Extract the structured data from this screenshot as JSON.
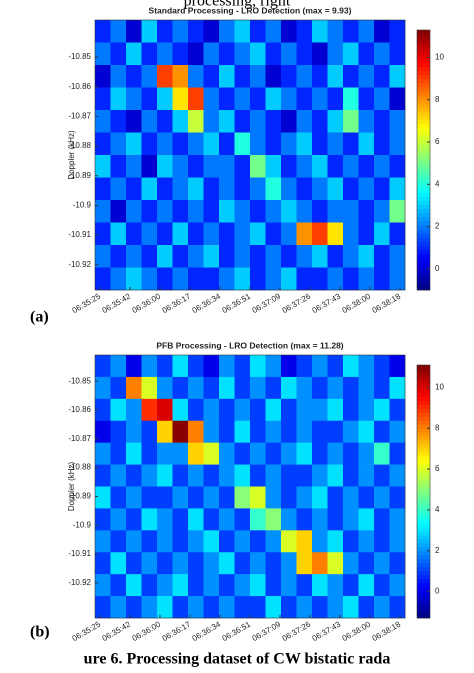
{
  "header_text": "processing, right",
  "caption": "ure 6. Processing dataset of CW bistatic rada",
  "chart_data": [
    {
      "type": "heatmap",
      "title": "Standard Processing - LRO Detection (max = 9.93)",
      "ylabel": "Doppler (kHz)",
      "panel_label": "(a)",
      "ylim": [
        -10.9285,
        -10.8375
      ],
      "yticks": [
        -10.85,
        -10.86,
        -10.87,
        -10.88,
        -10.89,
        -10.9,
        -10.91,
        -10.92
      ],
      "xtick_labels": [
        "06:35:25",
        "06:35:42",
        "06:36:00",
        "06:36:17",
        "06:36:34",
        "06:36:51",
        "06:37:09",
        "06:37:26",
        "06:37:43",
        "06:38:00",
        "06:38:18"
      ],
      "colormap": "jet",
      "clim": [
        -1.0,
        11.3
      ],
      "colorbar_ticks": [
        0,
        2,
        4,
        6,
        8,
        10
      ],
      "z": [
        [
          1,
          2,
          0,
          3,
          1,
          2,
          1,
          0,
          2,
          3,
          1,
          2,
          0,
          1,
          3,
          2,
          1,
          2,
          0,
          1
        ],
        [
          2,
          1,
          3,
          1,
          2,
          1,
          0,
          2,
          1,
          2,
          3,
          1,
          2,
          1,
          0,
          2,
          3,
          1,
          2,
          1
        ],
        [
          0,
          2,
          1,
          2,
          9,
          8,
          2,
          1,
          3,
          1,
          2,
          0,
          1,
          2,
          1,
          3,
          1,
          2,
          1,
          3
        ],
        [
          1,
          3,
          2,
          1,
          3,
          7,
          9,
          2,
          1,
          2,
          1,
          3,
          2,
          1,
          2,
          1,
          4,
          1,
          2,
          0
        ],
        [
          2,
          1,
          0,
          2,
          1,
          3,
          6,
          2,
          3,
          1,
          2,
          1,
          0,
          2,
          1,
          3,
          5,
          2,
          1,
          2
        ],
        [
          1,
          2,
          3,
          1,
          2,
          1,
          2,
          3,
          1,
          4,
          2,
          1,
          2,
          3,
          1,
          2,
          1,
          3,
          1,
          2
        ],
        [
          3,
          1,
          2,
          0,
          3,
          2,
          1,
          2,
          2,
          1,
          5,
          3,
          1,
          2,
          3,
          1,
          2,
          1,
          2,
          1
        ],
        [
          1,
          2,
          1,
          3,
          1,
          2,
          3,
          1,
          2,
          1,
          2,
          4,
          2,
          1,
          2,
          3,
          1,
          2,
          1,
          3
        ],
        [
          2,
          0,
          2,
          1,
          2,
          1,
          2,
          1,
          3,
          2,
          1,
          2,
          3,
          2,
          1,
          2,
          2,
          1,
          2,
          5
        ],
        [
          1,
          3,
          1,
          2,
          1,
          3,
          1,
          2,
          1,
          2,
          3,
          1,
          2,
          8,
          9,
          7,
          2,
          1,
          3,
          1
        ],
        [
          2,
          1,
          2,
          1,
          3,
          1,
          2,
          3,
          1,
          2,
          1,
          2,
          1,
          2,
          3,
          1,
          2,
          3,
          1,
          2
        ],
        [
          1,
          2,
          3,
          2,
          1,
          2,
          1,
          1,
          2,
          3,
          1,
          2,
          3,
          1,
          1,
          2,
          1,
          2,
          1,
          2
        ]
      ]
    },
    {
      "type": "heatmap",
      "title": "PFB Processing - LRO Detection (max = 11.28)",
      "ylabel": "Doppler (kHz)",
      "panel_label": "(b)",
      "ylim": [
        -10.9322,
        -10.8409
      ],
      "yticks": [
        -10.85,
        -10.86,
        -10.87,
        -10.88,
        -10.89,
        -10.9,
        -10.91,
        -10.92
      ],
      "xtick_labels": [
        "06:35:25",
        "06:35:42",
        "06:36:00",
        "06:36:17",
        "06:36:34",
        "06:36:51",
        "06:37:09",
        "06:37:26",
        "06:37:43",
        "06:38:00",
        "06:38:18"
      ],
      "colormap": "jet",
      "clim": [
        -1.3,
        11.1
      ],
      "colorbar_ticks": [
        0,
        2,
        4,
        6,
        8,
        10
      ],
      "z": [
        [
          1,
          2,
          0,
          2,
          1,
          3,
          1,
          0,
          2,
          1,
          3,
          2,
          0,
          1,
          2,
          1,
          3,
          2,
          1,
          0
        ],
        [
          2,
          1,
          8,
          6,
          2,
          1,
          2,
          1,
          3,
          1,
          2,
          1,
          3,
          2,
          1,
          2,
          1,
          2,
          1,
          3
        ],
        [
          1,
          3,
          2,
          9,
          10,
          3,
          1,
          2,
          1,
          2,
          1,
          3,
          1,
          2,
          2,
          3,
          1,
          2,
          3,
          1
        ],
        [
          0,
          1,
          2,
          1,
          7,
          11,
          8,
          2,
          1,
          3,
          1,
          2,
          1,
          2,
          1,
          1,
          2,
          3,
          1,
          2
        ],
        [
          2,
          1,
          3,
          1,
          2,
          2,
          7,
          6,
          2,
          1,
          2,
          1,
          2,
          3,
          1,
          2,
          1,
          2,
          4,
          1
        ],
        [
          1,
          2,
          1,
          2,
          3,
          1,
          2,
          1,
          2,
          3,
          1,
          2,
          1,
          1,
          2,
          3,
          1,
          2,
          1,
          2
        ],
        [
          3,
          1,
          2,
          1,
          1,
          2,
          1,
          2,
          1,
          5,
          6,
          2,
          1,
          2,
          3,
          1,
          2,
          1,
          2,
          1
        ],
        [
          1,
          2,
          1,
          3,
          2,
          1,
          3,
          1,
          2,
          1,
          4,
          5,
          2,
          1,
          2,
          1,
          2,
          3,
          1,
          2
        ],
        [
          2,
          1,
          2,
          1,
          2,
          1,
          2,
          3,
          1,
          2,
          1,
          2,
          6,
          7,
          2,
          3,
          1,
          2,
          1,
          2
        ],
        [
          1,
          3,
          1,
          2,
          1,
          2,
          1,
          2,
          3,
          1,
          2,
          1,
          2,
          7,
          8,
          6,
          2,
          1,
          2,
          1
        ],
        [
          2,
          1,
          3,
          1,
          2,
          3,
          1,
          2,
          1,
          2,
          3,
          1,
          2,
          1,
          3,
          2,
          1,
          3,
          1,
          2
        ],
        [
          1,
          2,
          1,
          2,
          3,
          1,
          2,
          1,
          2,
          1,
          1,
          3,
          1,
          2,
          1,
          2,
          3,
          1,
          2,
          1
        ]
      ]
    }
  ]
}
